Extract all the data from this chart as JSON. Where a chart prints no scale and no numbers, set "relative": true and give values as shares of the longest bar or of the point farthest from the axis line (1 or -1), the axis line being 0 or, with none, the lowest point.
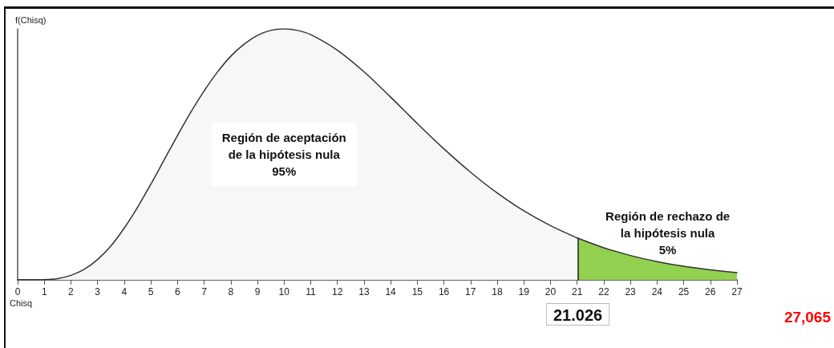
{
  "chart_data": {
    "type": "area",
    "relative": true,
    "xlabel": "Chisq",
    "ylabel": "f(Chisq)",
    "xlim": [
      0,
      27
    ],
    "xticks": [
      0,
      1,
      2,
      3,
      4,
      5,
      6,
      7,
      8,
      9,
      10,
      11,
      12,
      13,
      14,
      15,
      16,
      17,
      18,
      19,
      20,
      21,
      22,
      23,
      24,
      25,
      26,
      27
    ],
    "series": [
      {
        "color": "#f7f7f7",
        "x": [
          0,
          1,
          1.5,
          2,
          2.5,
          3,
          3.5,
          4,
          4.5,
          5,
          5.5,
          6,
          6.5,
          7,
          7.5,
          8,
          8.5,
          9,
          9.5,
          10,
          10.5,
          11,
          12,
          13,
          14,
          15,
          16,
          17,
          18,
          19,
          20,
          21,
          21.026
        ],
        "values": [
          0,
          0.001,
          0.005,
          0.018,
          0.042,
          0.081,
          0.135,
          0.206,
          0.289,
          0.381,
          0.478,
          0.575,
          0.668,
          0.753,
          0.828,
          0.891,
          0.939,
          0.974,
          0.994,
          1,
          0.994,
          0.977,
          0.915,
          0.829,
          0.728,
          0.623,
          0.522,
          0.429,
          0.346,
          0.275,
          0.216,
          0.167,
          0.166
        ]
      },
      {
        "color": "#92d050",
        "x": [
          21.026,
          22,
          23,
          24,
          25,
          26,
          27
        ],
        "values": [
          0.166,
          0.128,
          0.097,
          0.073,
          0.054,
          0.04,
          0.029
        ]
      }
    ],
    "ref_lines": [
      {
        "axis": "x",
        "value": 21.026,
        "label": "21.026"
      }
    ],
    "annotations": [
      "Región de aceptación\nde la hipótesis nula\n95%",
      {
        "text": "Región de rechazo de\nla hipótesis nula\n5%",
        "x": 24.4,
        "y": 0.064
      },
      "27,065"
    ]
  }
}
